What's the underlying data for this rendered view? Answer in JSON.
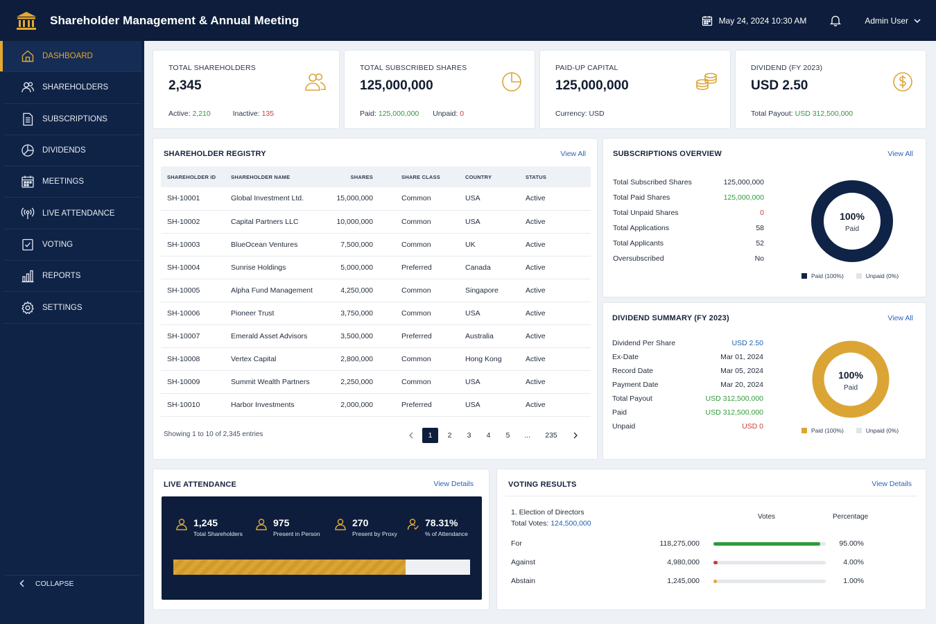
{
  "header": {
    "title": "Shareholder Management & Annual Meeting",
    "datetime": "May 24, 2024 10:30 AM",
    "user": "Admin User"
  },
  "sidebar": {
    "items": [
      {
        "label": "DASHBOARD",
        "icon": "home-icon",
        "active": true
      },
      {
        "label": "SHAREHOLDERS",
        "icon": "users-icon"
      },
      {
        "label": "SUBSCRIPTIONS",
        "icon": "document-icon"
      },
      {
        "label": "DIVIDENDS",
        "icon": "pie-chart-icon"
      },
      {
        "label": "MEETINGS",
        "icon": "calendar-icon"
      },
      {
        "label": "LIVE ATTENDANCE",
        "icon": "broadcast-icon"
      },
      {
        "label": "VOTING",
        "icon": "checkbox-icon"
      },
      {
        "label": "REPORTS",
        "icon": "bar-chart-icon"
      },
      {
        "label": "SETTINGS",
        "icon": "gear-icon"
      }
    ],
    "collapse_label": "COLLAPSE"
  },
  "stats": {
    "shareholders": {
      "label": "TOTAL SHAREHOLDERS",
      "value": "2,345",
      "active_label": "Active:",
      "active": "2,210",
      "inactive_label": "Inactive:",
      "inactive": "135"
    },
    "shares": {
      "label": "TOTAL SUBSCRIBED SHARES",
      "value": "125,000,000",
      "paid_label": "Paid:",
      "paid": "125,000,000",
      "unpaid_label": "Unpaid:",
      "unpaid": "0"
    },
    "capital": {
      "label": "PAID-UP CAPITAL",
      "value": "125,000,000",
      "currency_label": "Currency:",
      "currency": "USD"
    },
    "dividend": {
      "label": "DIVIDEND (FY 2023)",
      "value": "USD 2.50",
      "payout_label": "Total Payout:",
      "payout": "USD 312,500,000"
    }
  },
  "registry": {
    "title": "SHAREHOLDER REGISTRY",
    "view_all": "View All",
    "columns": [
      "SHAREHOLDER ID",
      "SHAREHOLDER NAME",
      "SHARES",
      "SHARE CLASS",
      "COUNTRY",
      "STATUS"
    ],
    "rows": [
      [
        "SH-10001",
        "Global Investment Ltd.",
        "15,000,000",
        "Common",
        "USA",
        "Active"
      ],
      [
        "SH-10002",
        "Capital Partners LLC",
        "10,000,000",
        "Common",
        "USA",
        "Active"
      ],
      [
        "SH-10003",
        "BlueOcean Ventures",
        "7,500,000",
        "Common",
        "UK",
        "Active"
      ],
      [
        "SH-10004",
        "Sunrise Holdings",
        "5,000,000",
        "Preferred",
        "Canada",
        "Active"
      ],
      [
        "SH-10005",
        "Alpha Fund Management",
        "4,250,000",
        "Common",
        "Singapore",
        "Active"
      ],
      [
        "SH-10006",
        "Pioneer Trust",
        "3,750,000",
        "Common",
        "USA",
        "Active"
      ],
      [
        "SH-10007",
        "Emerald Asset Advisors",
        "3,500,000",
        "Preferred",
        "Australia",
        "Active"
      ],
      [
        "SH-10008",
        "Vertex Capital",
        "2,800,000",
        "Common",
        "Hong Kong",
        "Active"
      ],
      [
        "SH-10009",
        "Summit Wealth Partners",
        "2,250,000",
        "Common",
        "USA",
        "Active"
      ],
      [
        "SH-10010",
        "Harbor Investments",
        "2,000,000",
        "Preferred",
        "USA",
        "Active"
      ]
    ],
    "showing": "Showing 1 to 10 of 2,345 entries",
    "pages": [
      "1",
      "2",
      "3",
      "4",
      "5",
      "...",
      "235"
    ]
  },
  "subscriptions": {
    "title": "SUBSCRIPTIONS OVERVIEW",
    "view_all": "View All",
    "rows": [
      {
        "label": "Total Subscribed Shares",
        "value": "125,000,000",
        "tone": ""
      },
      {
        "label": "Total Paid Shares",
        "value": "125,000,000",
        "tone": "green"
      },
      {
        "label": "Total Unpaid Shares",
        "value": "0",
        "tone": "red"
      },
      {
        "label": "Total Applications",
        "value": "58",
        "tone": ""
      },
      {
        "label": "Total Applicants",
        "value": "52",
        "tone": ""
      },
      {
        "label": "Oversubscribed",
        "value": "No",
        "tone": ""
      }
    ],
    "donut": {
      "pct": "100%",
      "label": "Paid",
      "paid_fraction": 1.0,
      "color": "#0f2346"
    },
    "legend": [
      "Paid (100%)",
      "Unpaid (0%)"
    ]
  },
  "dividends": {
    "title": "DIVIDEND SUMMARY (FY 2023)",
    "view_all": "View All",
    "rows": [
      {
        "label": "Dividend Per Share",
        "value": "USD 2.50",
        "tone": "blue"
      },
      {
        "label": "Ex-Date",
        "value": "Mar 01, 2024",
        "tone": ""
      },
      {
        "label": "Record Date",
        "value": "Mar 05, 2024",
        "tone": ""
      },
      {
        "label": "Payment Date",
        "value": "Mar 20, 2024",
        "tone": ""
      },
      {
        "label": "Total Payout",
        "value": "USD 312,500,000",
        "tone": "green"
      },
      {
        "label": "Paid",
        "value": "USD 312,500,000",
        "tone": "green"
      },
      {
        "label": "Unpaid",
        "value": "USD 0",
        "tone": "red"
      }
    ],
    "donut": {
      "pct": "100%",
      "label": "Paid",
      "paid_fraction": 1.0,
      "color": "#dba536"
    },
    "legend": [
      "Paid (100%)",
      "Unpaid (0%)"
    ]
  },
  "attendance": {
    "title": "LIVE ATTENDANCE",
    "view_details": "View Details",
    "items": [
      {
        "value": "1,245",
        "label": "Total Shareholders"
      },
      {
        "value": "975",
        "label": "Present in Person"
      },
      {
        "value": "270",
        "label": "Present by Proxy"
      },
      {
        "value": "78.31%",
        "label": "% of Attendance"
      }
    ],
    "progress_fraction": 0.7831
  },
  "voting": {
    "title": "VOTING RESULTS",
    "view_details": "View Details",
    "resolution": "1. Election of Directors",
    "total_votes_label": "Total Votes:",
    "total_votes": "124,500,000",
    "col_votes": "Votes",
    "col_pct": "Percentage",
    "rows": [
      {
        "label": "For",
        "votes": "118,275,000",
        "pct": "95.00%",
        "fraction": 0.95,
        "color": "#2e9a3c"
      },
      {
        "label": "Against",
        "votes": "4,980,000",
        "pct": "4.00%",
        "fraction": 0.04,
        "color": "#c93a3a"
      },
      {
        "label": "Abstain",
        "votes": "1,245,000",
        "pct": "1.00%",
        "fraction": 0.01,
        "color": "#e3a92f"
      }
    ]
  }
}
